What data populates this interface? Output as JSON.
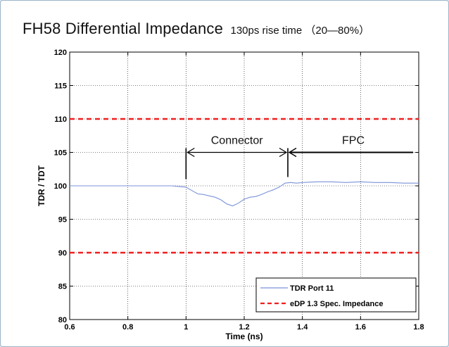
{
  "chart_data": {
    "type": "line",
    "title": "FH58 Differential Impedance",
    "subtitle": "130ps rise time （20—80%）",
    "xlabel": "Time (ns)",
    "ylabel": "TDR / TDT",
    "xlim": [
      0.6,
      1.8
    ],
    "ylim": [
      80,
      120
    ],
    "x_ticks": [
      "0.6",
      "0.8",
      "1",
      "1.2",
      "1.4",
      "1.6",
      "1.8"
    ],
    "y_ticks": [
      "80",
      "85",
      "90",
      "95",
      "100",
      "105",
      "110",
      "115",
      "120"
    ],
    "grid": true,
    "legend_position": "bottom-right",
    "series": [
      {
        "name": "TDR Port 11",
        "color": "#7b93d8",
        "style": "solid",
        "x": [
          0.6,
          0.8,
          0.9,
          0.95,
          1.0,
          1.02,
          1.04,
          1.06,
          1.08,
          1.1,
          1.12,
          1.14,
          1.16,
          1.18,
          1.2,
          1.22,
          1.24,
          1.26,
          1.28,
          1.3,
          1.32,
          1.34,
          1.36,
          1.38,
          1.4,
          1.45,
          1.5,
          1.55,
          1.6,
          1.65,
          1.7,
          1.75,
          1.8
        ],
        "y": [
          100.0,
          100.0,
          100.0,
          100.0,
          99.8,
          99.3,
          98.8,
          98.7,
          98.5,
          98.3,
          97.9,
          97.3,
          97.0,
          97.4,
          98.0,
          98.3,
          98.4,
          98.7,
          99.1,
          99.4,
          99.8,
          100.4,
          100.5,
          100.4,
          100.5,
          100.6,
          100.6,
          100.5,
          100.6,
          100.5,
          100.5,
          100.4,
          100.4
        ]
      },
      {
        "name": "eDP 1.3 Spec. Impedance",
        "color": "#ee2020",
        "style": "dashed",
        "x": [
          0.6,
          1.8
        ],
        "y": [
          110,
          110
        ]
      },
      {
        "name": "",
        "color": "#ee2020",
        "style": "dashed",
        "x": [
          0.6,
          1.8
        ],
        "y": [
          90,
          90
        ]
      }
    ],
    "annotations": [
      {
        "label": "Connector",
        "x_start": 1.0,
        "x_end": 1.35,
        "y": 105
      },
      {
        "label": "FPC",
        "x_start": 1.35,
        "x_end": 1.8,
        "y": 105
      }
    ]
  }
}
